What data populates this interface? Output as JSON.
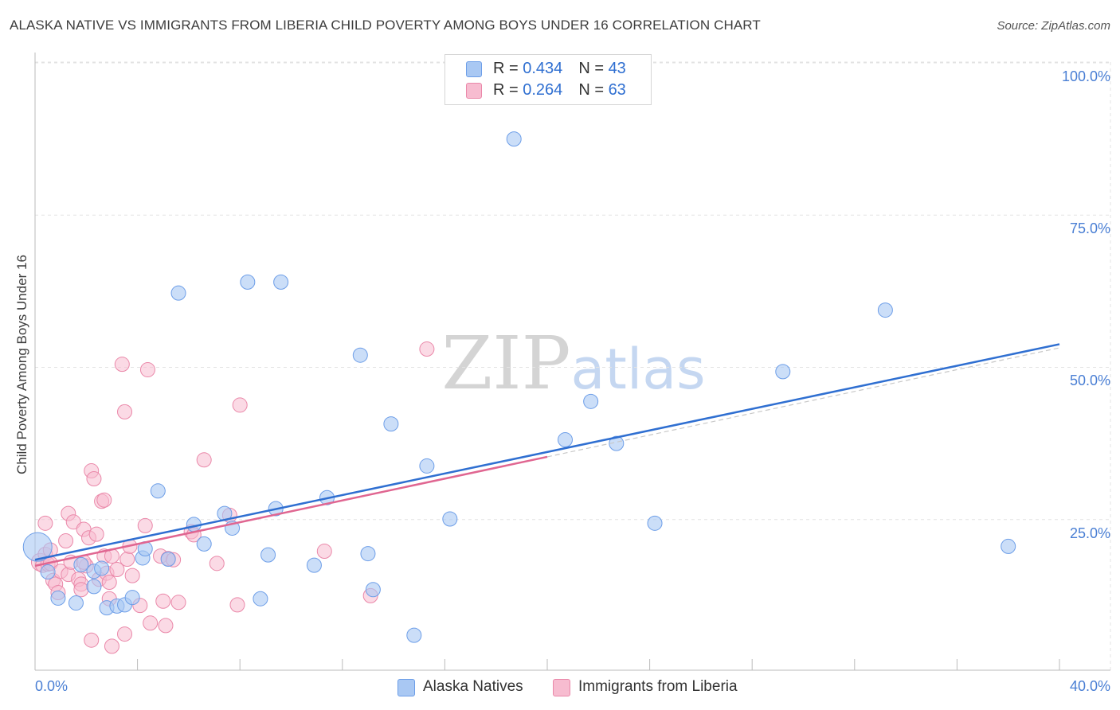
{
  "chart_data": {
    "type": "scatter",
    "title": "ALASKA NATIVE VS IMMIGRANTS FROM LIBERIA CHILD POVERTY AMONG BOYS UNDER 16 CORRELATION CHART",
    "source": "Source: ZipAtlas.com",
    "xlabel": "",
    "ylabel": "Child Poverty Among Boys Under 16",
    "xlim": [
      0,
      40
    ],
    "ylim": [
      0,
      105
    ],
    "x_tick_labels": [
      "0.0%",
      "40.0%"
    ],
    "y_ticks": [
      25,
      50,
      75,
      100
    ],
    "y_tick_labels": [
      "25.0%",
      "50.0%",
      "75.0%",
      "100.0%"
    ],
    "watermark": "ZIPatlas",
    "colors": {
      "alaska_fill": "#a9c8f3",
      "alaska_stroke": "#6d9ee8",
      "alaska_line": "#2f6fd1",
      "liberia_fill": "#f7bcd0",
      "liberia_stroke": "#ea88a9",
      "liberia_line": "#e06691",
      "grid": "#e3e3e3",
      "tick_text": "#4a7fd4"
    },
    "legend": [
      {
        "r_label": "R = ",
        "r_value": "0.434",
        "n_label": "N = ",
        "n_value": "43"
      },
      {
        "r_label": "R = ",
        "r_value": "0.264",
        "n_label": "N = ",
        "n_value": "63"
      }
    ],
    "series": [
      {
        "name": "Alaska Natives",
        "trend": {
          "x0": 0,
          "y0": 18.4,
          "x1": 40,
          "y1": 53.8
        },
        "points": [
          [
            0.1,
            20.5,
            18
          ],
          [
            0.5,
            16.4,
            9
          ],
          [
            0.9,
            12.1,
            9
          ],
          [
            1.6,
            11.3,
            9
          ],
          [
            1.8,
            17.6,
            9
          ],
          [
            2.3,
            16.5,
            9
          ],
          [
            2.3,
            14.0,
            9
          ],
          [
            2.6,
            17.0,
            9
          ],
          [
            2.8,
            10.5,
            9
          ],
          [
            3.2,
            10.8,
            9
          ],
          [
            3.5,
            11.0,
            9
          ],
          [
            3.8,
            12.2,
            9
          ],
          [
            4.2,
            18.7,
            9
          ],
          [
            4.3,
            20.2,
            9
          ],
          [
            4.8,
            29.7,
            9
          ],
          [
            5.2,
            18.5,
            9
          ],
          [
            5.6,
            62.2,
            9
          ],
          [
            6.2,
            24.2,
            9
          ],
          [
            6.6,
            21.0,
            9
          ],
          [
            7.4,
            26.0,
            9
          ],
          [
            7.7,
            23.6,
            9
          ],
          [
            8.3,
            64.0,
            9
          ],
          [
            8.8,
            12.0,
            9
          ],
          [
            9.1,
            19.2,
            9
          ],
          [
            9.4,
            26.8,
            9
          ],
          [
            9.6,
            64.0,
            9
          ],
          [
            10.9,
            17.5,
            9
          ],
          [
            11.4,
            28.6,
            9
          ],
          [
            12.7,
            52.0,
            9
          ],
          [
            13.0,
            19.4,
            9
          ],
          [
            13.2,
            13.5,
            9
          ],
          [
            13.9,
            40.7,
            9
          ],
          [
            14.8,
            6.0,
            9
          ],
          [
            15.3,
            33.8,
            9
          ],
          [
            16.2,
            25.1,
            9
          ],
          [
            18.7,
            87.5,
            9
          ],
          [
            20.7,
            38.1,
            9
          ],
          [
            21.7,
            44.4,
            9
          ],
          [
            22.7,
            37.5,
            9
          ],
          [
            24.2,
            24.4,
            9
          ],
          [
            29.2,
            49.3,
            9
          ],
          [
            33.2,
            59.4,
            9
          ],
          [
            38.0,
            20.6,
            9
          ]
        ]
      },
      {
        "name": "Immigrants from Liberia",
        "trend": {
          "x0": 0,
          "y0": 17.4,
          "x1": 20,
          "y1": 35.3
        },
        "points": [
          [
            0.2,
            18.0,
            11
          ],
          [
            0.3,
            17.5,
            9
          ],
          [
            0.4,
            24.4,
            9
          ],
          [
            0.4,
            19.3,
            9
          ],
          [
            0.5,
            17.7,
            9
          ],
          [
            0.6,
            17.8,
            9
          ],
          [
            0.7,
            15.0,
            9
          ],
          [
            0.8,
            14.4,
            9
          ],
          [
            0.9,
            13.0,
            9
          ],
          [
            1.0,
            16.5,
            9
          ],
          [
            1.2,
            21.5,
            9
          ],
          [
            1.3,
            16.0,
            9
          ],
          [
            1.3,
            26.0,
            9
          ],
          [
            1.4,
            18.0,
            9
          ],
          [
            1.5,
            24.6,
            9
          ],
          [
            1.7,
            15.2,
            9
          ],
          [
            1.8,
            14.4,
            9
          ],
          [
            1.8,
            13.5,
            9
          ],
          [
            1.9,
            23.4,
            9
          ],
          [
            2.0,
            17.4,
            9
          ],
          [
            2.1,
            22.0,
            9
          ],
          [
            2.2,
            5.2,
            9
          ],
          [
            2.2,
            33.0,
            9
          ],
          [
            2.3,
            31.7,
            9
          ],
          [
            2.4,
            22.6,
            9
          ],
          [
            2.5,
            15.2,
            9
          ],
          [
            2.6,
            28.0,
            9
          ],
          [
            2.7,
            28.2,
            9
          ],
          [
            2.7,
            19.0,
            9
          ],
          [
            2.8,
            16.2,
            9
          ],
          [
            2.9,
            12.0,
            9
          ],
          [
            3.0,
            19.0,
            9
          ],
          [
            3.0,
            4.2,
            9
          ],
          [
            3.2,
            16.8,
            9
          ],
          [
            3.4,
            50.5,
            9
          ],
          [
            3.5,
            6.2,
            9
          ],
          [
            3.5,
            42.7,
            9
          ],
          [
            3.6,
            18.5,
            9
          ],
          [
            3.7,
            20.6,
            9
          ],
          [
            3.8,
            15.8,
            9
          ],
          [
            4.1,
            10.9,
            9
          ],
          [
            4.3,
            24.0,
            9
          ],
          [
            4.4,
            49.6,
            9
          ],
          [
            4.5,
            8.0,
            9
          ],
          [
            4.9,
            19.0,
            9
          ],
          [
            5.0,
            11.6,
            9
          ],
          [
            5.1,
            7.6,
            9
          ],
          [
            5.2,
            18.6,
            9
          ],
          [
            5.4,
            18.4,
            9
          ],
          [
            5.6,
            11.4,
            9
          ],
          [
            6.1,
            23.0,
            9
          ],
          [
            6.2,
            22.5,
            9
          ],
          [
            6.6,
            34.8,
            9
          ],
          [
            7.1,
            17.8,
            9
          ],
          [
            7.6,
            25.7,
            9
          ],
          [
            7.9,
            11.0,
            9
          ],
          [
            8.0,
            43.8,
            9
          ],
          [
            11.3,
            19.8,
            9
          ],
          [
            13.1,
            12.5,
            9
          ],
          [
            15.3,
            53.0,
            9
          ],
          [
            1.9,
            18.0,
            9
          ],
          [
            2.9,
            14.7,
            9
          ],
          [
            0.6,
            20.0,
            9
          ]
        ]
      }
    ]
  }
}
